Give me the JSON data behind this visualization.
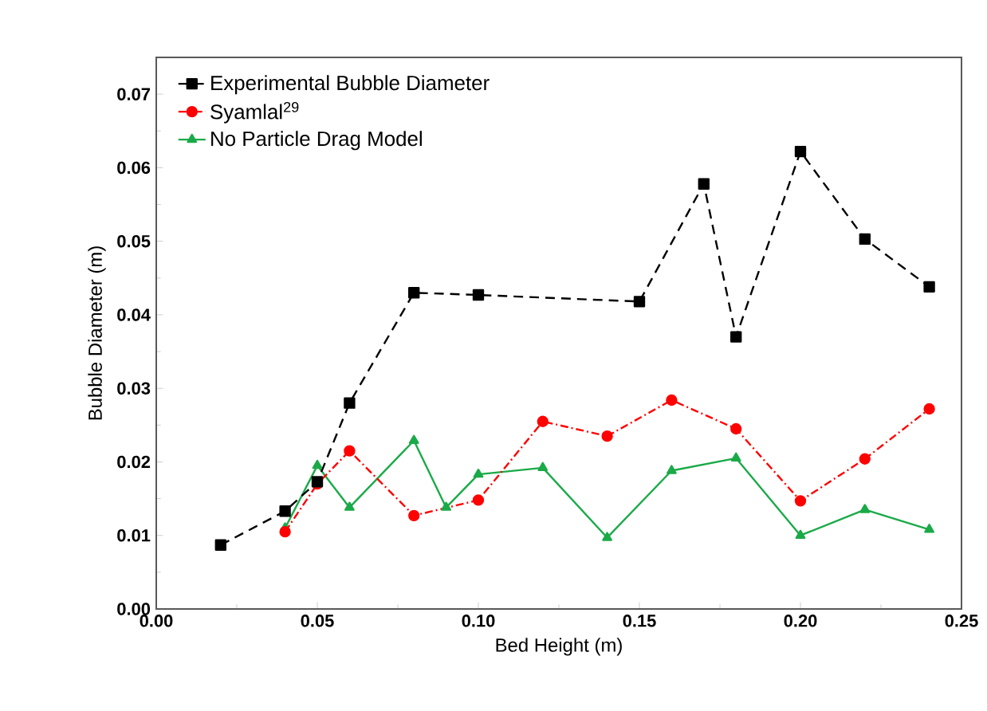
{
  "chart_data": {
    "type": "line",
    "xlabel": "Bed Height (m)",
    "ylabel": "Bubble Diameter (m)",
    "xlim": [
      0,
      0.25
    ],
    "ylim": [
      0,
      0.075
    ],
    "xticks": [
      {
        "value": 0,
        "label": "0.00"
      },
      {
        "value": 0.05,
        "label": "0.05"
      },
      {
        "value": 0.1,
        "label": "0.10"
      },
      {
        "value": 0.15,
        "label": "0.15"
      },
      {
        "value": 0.2,
        "label": "0.20"
      },
      {
        "value": 0.25,
        "label": "0.25"
      }
    ],
    "yticks": [
      {
        "value": 0,
        "label": "0.00"
      },
      {
        "value": 0.01,
        "label": "0.01"
      },
      {
        "value": 0.02,
        "label": "0.02"
      },
      {
        "value": 0.03,
        "label": "0.03"
      },
      {
        "value": 0.04,
        "label": "0.04"
      },
      {
        "value": 0.05,
        "label": "0.05"
      },
      {
        "value": 0.06,
        "label": "0.06"
      },
      {
        "value": 0.07,
        "label": "0.07"
      }
    ],
    "grid": false,
    "legend": "top left",
    "series": [
      {
        "name": "Experimental Bubble Diameter",
        "color": "#000000",
        "marker": "square",
        "line_style": "dashed",
        "x": [
          0.02,
          0.04,
          0.05,
          0.06,
          0.08,
          0.1,
          0.15,
          0.17,
          0.18,
          0.2,
          0.22,
          0.24
        ],
        "values": [
          0.0087,
          0.0133,
          0.0173,
          0.028,
          0.043,
          0.0427,
          0.0418,
          0.0578,
          0.037,
          0.0622,
          0.0503,
          0.0438
        ]
      },
      {
        "name": "Syamlal$^{29}$",
        "color": "#ff0000",
        "marker": "circle",
        "line_style": "dashdot",
        "x": [
          0.04,
          0.05,
          0.06,
          0.08,
          0.1,
          0.12,
          0.14,
          0.16,
          0.18,
          0.2,
          0.22,
          0.24
        ],
        "values": [
          0.0105,
          0.017,
          0.0215,
          0.0127,
          0.0148,
          0.0255,
          0.0235,
          0.0284,
          0.0245,
          0.0147,
          0.0204,
          0.0272
        ]
      },
      {
        "name": "No Particle Drag Model",
        "color": "#1aaa48",
        "marker": "triangle",
        "line_style": "solid",
        "x": [
          0.04,
          0.05,
          0.06,
          0.08,
          0.09,
          0.1,
          0.12,
          0.14,
          0.16,
          0.18,
          0.2,
          0.22,
          0.24
        ],
        "values": [
          0.011,
          0.0195,
          0.0138,
          0.0229,
          0.0138,
          0.0183,
          0.0192,
          0.0097,
          0.0188,
          0.0205,
          0.01,
          0.0135,
          0.0108
        ]
      }
    ]
  }
}
